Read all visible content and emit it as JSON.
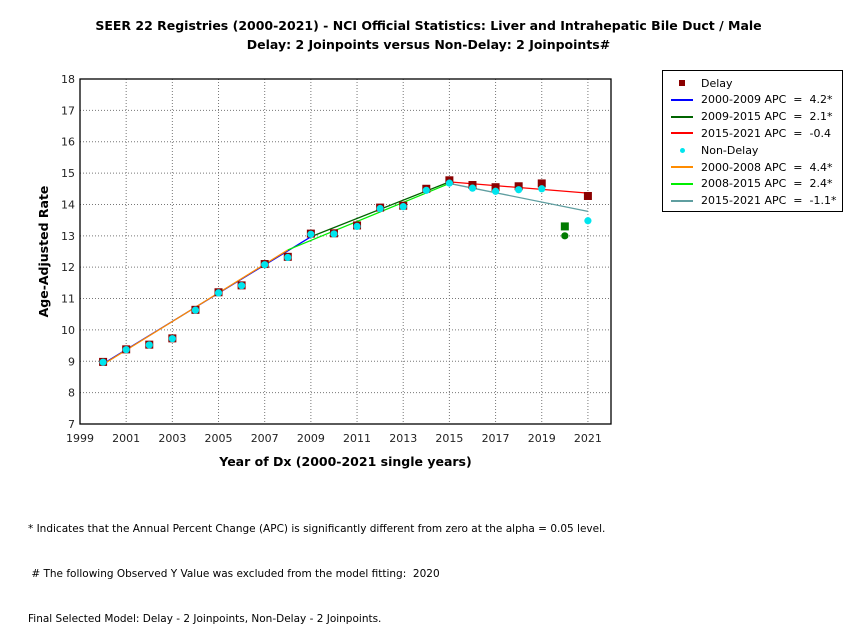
{
  "title_line1": "SEER 22 Registries (2000-2021) - NCI Official Statistics: Liver and Intrahepatic Bile Duct / Male",
  "title_line2": "Delay: 2 Joinpoints  versus  Non-Delay: 2 Joinpoints#",
  "chart_data": {
    "type": "scatter",
    "title": "SEER 22 Registries (2000-2021) - NCI Official Statistics: Liver and Intrahepatic Bile Duct / Male — Delay: 2 Joinpoints versus Non-Delay: 2 Joinpoints#",
    "xlabel": "Year of Dx (2000-2021 single years)",
    "ylabel": "Age-Adjusted Rate",
    "xlim": [
      1999,
      2022
    ],
    "ylim": [
      7,
      18
    ],
    "xticks": [
      1999,
      2001,
      2003,
      2005,
      2007,
      2009,
      2011,
      2013,
      2015,
      2017,
      2019,
      2021
    ],
    "yticks": [
      7,
      8,
      9,
      10,
      11,
      12,
      13,
      14,
      15,
      16,
      17,
      18
    ],
    "grid": true,
    "legend_position": "right",
    "x": [
      2000,
      2001,
      2002,
      2003,
      2004,
      2005,
      2006,
      2007,
      2008,
      2009,
      2010,
      2011,
      2012,
      2013,
      2014,
      2015,
      2016,
      2017,
      2018,
      2019,
      2020,
      2021
    ],
    "series": [
      {
        "name": "Delay",
        "kind": "observed",
        "marker": "square",
        "color": "#8b0000",
        "values": [
          8.98,
          9.38,
          9.53,
          9.73,
          10.64,
          11.2,
          11.42,
          12.1,
          12.33,
          13.07,
          13.08,
          13.33,
          13.9,
          13.96,
          14.5,
          14.77,
          14.62,
          14.55,
          14.58,
          14.67,
          13.3,
          14.27
        ],
        "excluded": [
          {
            "x": 2020,
            "y": 13.3,
            "color": "#007a00"
          }
        ]
      },
      {
        "name": "Non-Delay",
        "kind": "observed",
        "marker": "circle",
        "color": "#00e5ee",
        "values": [
          8.97,
          9.37,
          9.52,
          9.72,
          10.63,
          11.18,
          11.41,
          12.08,
          12.31,
          13.05,
          13.06,
          13.3,
          13.87,
          13.93,
          14.45,
          14.68,
          14.52,
          14.42,
          14.47,
          14.5,
          13.0,
          13.48
        ],
        "excluded": [
          {
            "x": 2020,
            "y": 13.0,
            "color": "#007a00"
          }
        ]
      }
    ],
    "fits": [
      {
        "group": "Delay",
        "label": "2000-2009 APC  =  4.2*",
        "color": "#0000ff",
        "x": [
          2000,
          2009
        ],
        "y": [
          8.92,
          12.97
        ]
      },
      {
        "group": "Delay",
        "label": "2009-2015 APC  =  2.1*",
        "color": "#006400",
        "x": [
          2009,
          2015
        ],
        "y": [
          12.97,
          14.72
        ]
      },
      {
        "group": "Delay",
        "label": "2015-2021 APC  =  -0.4",
        "color": "#ff0000",
        "x": [
          2015,
          2021
        ],
        "y": [
          14.72,
          14.36
        ]
      },
      {
        "group": "Non-Delay",
        "label": "2000-2008 APC  =  4.4*",
        "color": "#ff8c00",
        "x": [
          2000,
          2008
        ],
        "y": [
          8.9,
          12.55
        ]
      },
      {
        "group": "Non-Delay",
        "label": "2008-2015 APC  =  2.4*",
        "color": "#00ee00",
        "x": [
          2008,
          2015
        ],
        "y": [
          12.55,
          14.67
        ]
      },
      {
        "group": "Non-Delay",
        "label": "2015-2021 APC  =  -1.1*",
        "color": "#5f9ea0",
        "x": [
          2015,
          2021
        ],
        "y": [
          14.67,
          13.78
        ]
      }
    ]
  },
  "legend": {
    "items": [
      {
        "label": "Delay",
        "type": "square",
        "color": "#8b0000"
      },
      {
        "label": "2000-2009 APC  =  4.2*",
        "type": "line",
        "color": "#0000ff"
      },
      {
        "label": "2009-2015 APC  =  2.1*",
        "type": "line",
        "color": "#006400"
      },
      {
        "label": "2015-2021 APC  =  -0.4",
        "type": "line",
        "color": "#ff0000"
      },
      {
        "label": "Non-Delay",
        "type": "dot",
        "color": "#00e5ee"
      },
      {
        "label": "2000-2008 APC  =  4.4*",
        "type": "line",
        "color": "#ff8c00"
      },
      {
        "label": "2008-2015 APC  =  2.4*",
        "type": "line",
        "color": "#00ee00"
      },
      {
        "label": "2015-2021 APC  =  -1.1*",
        "type": "line",
        "color": "#5f9ea0"
      }
    ]
  },
  "footnotes": {
    "line1": "* Indicates that the Annual Percent Change (APC) is significantly different from zero at the alpha = 0.05 level.",
    "line2": " # The following Observed Y Value was excluded from the model fitting:  2020",
    "line3": "Final Selected Model: Delay - 2 Joinpoints, Non-Delay - 2 Joinpoints."
  }
}
